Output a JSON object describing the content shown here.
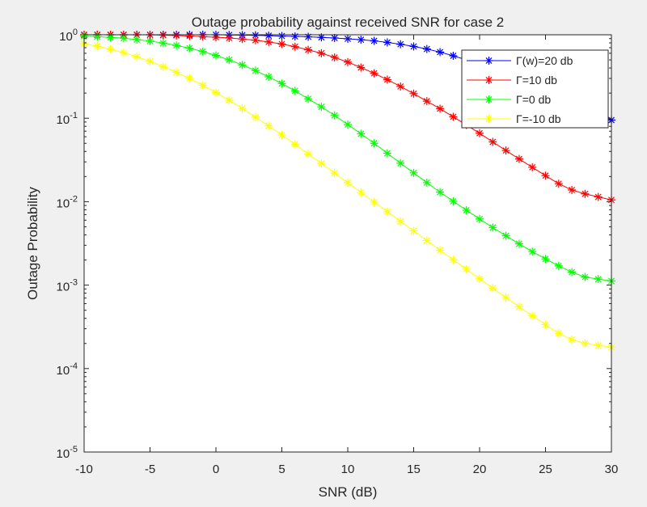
{
  "chart_data": {
    "type": "line",
    "title": "Outage probability against received SNR for case 2",
    "xlabel": "SNR (dB)",
    "ylabel": "Outage Probability",
    "xlim": [
      -10,
      30
    ],
    "ylim": [
      1e-05,
      1
    ],
    "yscale": "log",
    "grid": false,
    "legend_position": "top-right",
    "x_ticks": [
      "-10",
      "-5",
      "0",
      "5",
      "10",
      "15",
      "20",
      "25",
      "30"
    ],
    "y_ticks": [
      {
        "base": "10",
        "exp": "0"
      },
      {
        "base": "10",
        "exp": "-1"
      },
      {
        "base": "10",
        "exp": "-2"
      },
      {
        "base": "10",
        "exp": "-3"
      },
      {
        "base": "10",
        "exp": "-4"
      },
      {
        "base": "10",
        "exp": "-5"
      }
    ],
    "x": [
      -10,
      -9,
      -8,
      -7,
      -6,
      -5,
      -4,
      -3,
      -2,
      -1,
      0,
      1,
      2,
      3,
      4,
      5,
      6,
      7,
      8,
      9,
      10,
      11,
      12,
      13,
      14,
      15,
      16,
      17,
      18,
      19,
      20,
      21,
      22,
      23,
      24,
      25,
      26,
      27,
      28,
      29,
      30
    ],
    "series": [
      {
        "name": "Γ(w)=20 db",
        "color": "#0000ff",
        "marker": "asterisk",
        "values": [
          1.0,
          1.0,
          1.0,
          1.0,
          1.0,
          1.0,
          1.0,
          1.0,
          1.0,
          1.0,
          1.0,
          0.995,
          0.99,
          0.985,
          0.975,
          0.965,
          0.955,
          0.945,
          0.93,
          0.915,
          0.895,
          0.873,
          0.845,
          0.81,
          0.77,
          0.725,
          0.675,
          0.62,
          0.56,
          0.5,
          0.44,
          0.385,
          0.335,
          0.29,
          0.248,
          0.212,
          0.18,
          0.152,
          0.13,
          0.11,
          0.095
        ]
      },
      {
        "name": "Γ=10 db",
        "color": "#ff0000",
        "marker": "asterisk",
        "values": [
          1.0,
          1.0,
          1.0,
          1.0,
          1.0,
          1.0,
          0.99,
          0.98,
          0.965,
          0.95,
          0.935,
          0.915,
          0.89,
          0.86,
          0.82,
          0.775,
          0.72,
          0.66,
          0.6,
          0.535,
          0.47,
          0.405,
          0.345,
          0.29,
          0.24,
          0.197,
          0.16,
          0.13,
          0.104,
          0.083,
          0.066,
          0.052,
          0.041,
          0.0325,
          0.0258,
          0.0205,
          0.0164,
          0.0138,
          0.0124,
          0.0114,
          0.0105
        ]
      },
      {
        "name": "Γ=0 db",
        "color": "#00ff00",
        "marker": "asterisk",
        "values": [
          0.96,
          0.95,
          0.93,
          0.91,
          0.875,
          0.84,
          0.795,
          0.745,
          0.69,
          0.63,
          0.565,
          0.5,
          0.435,
          0.372,
          0.313,
          0.26,
          0.213,
          0.171,
          0.137,
          0.108,
          0.084,
          0.065,
          0.05,
          0.038,
          0.0289,
          0.0221,
          0.0169,
          0.013,
          0.0101,
          0.0079,
          0.0062,
          0.0049,
          0.0039,
          0.00312,
          0.00252,
          0.00206,
          0.0017,
          0.00143,
          0.00125,
          0.00118,
          0.00112
        ]
      },
      {
        "name": "Γ=-10 db",
        "color": "#ffff00",
        "marker": "asterisk",
        "values": [
          0.78,
          0.73,
          0.67,
          0.61,
          0.545,
          0.48,
          0.415,
          0.355,
          0.3,
          0.248,
          0.203,
          0.164,
          0.131,
          0.103,
          0.081,
          0.0629,
          0.0486,
          0.0374,
          0.0287,
          0.022,
          0.0169,
          0.0129,
          0.0099,
          0.0076,
          0.0058,
          0.00446,
          0.00342,
          0.00262,
          0.00201,
          0.00155,
          0.00119,
          0.00092,
          0.00071,
          0.00055,
          0.000428,
          0.000335,
          0.000265,
          0.000222,
          0.0002,
          0.00019,
          0.00018
        ]
      }
    ]
  }
}
